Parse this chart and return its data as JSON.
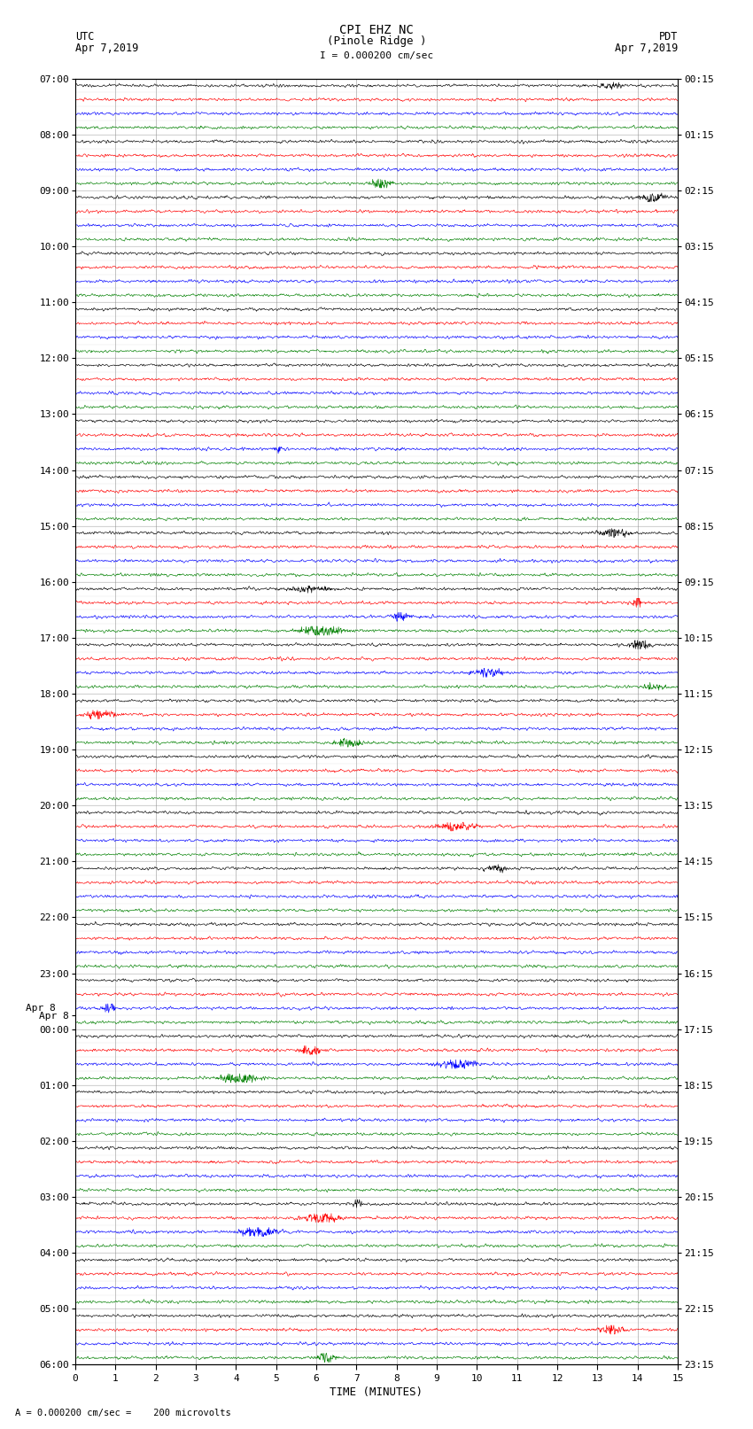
{
  "title_line1": "CPI EHZ NC",
  "title_line2": "(Pinole Ridge )",
  "title_scale": "I = 0.000200 cm/sec",
  "label_utc": "UTC",
  "label_pdt": "PDT",
  "date_left": "Apr 7,2019",
  "date_right": "Apr 7,2019",
  "xlabel": "TIME (MINUTES)",
  "scale_label": "= 0.000200 cm/sec =    200 microvolts",
  "scale_marker": "A",
  "bg_color": "#ffffff",
  "grid_color": "#888888",
  "trace_colors": [
    "black",
    "red",
    "blue",
    "green"
  ],
  "minutes_per_row": 15,
  "left_hour_labels": [
    [
      "07:00",
      0
    ],
    [
      "08:00",
      4
    ],
    [
      "09:00",
      8
    ],
    [
      "10:00",
      12
    ],
    [
      "11:00",
      16
    ],
    [
      "12:00",
      20
    ],
    [
      "13:00",
      24
    ],
    [
      "14:00",
      28
    ],
    [
      "15:00",
      32
    ],
    [
      "16:00",
      36
    ],
    [
      "17:00",
      40
    ],
    [
      "18:00",
      44
    ],
    [
      "19:00",
      48
    ],
    [
      "20:00",
      52
    ],
    [
      "21:00",
      56
    ],
    [
      "22:00",
      60
    ],
    [
      "23:00",
      64
    ],
    [
      "Apr 8",
      67
    ],
    [
      "00:00",
      68
    ],
    [
      "01:00",
      72
    ],
    [
      "02:00",
      76
    ],
    [
      "03:00",
      80
    ],
    [
      "04:00",
      84
    ],
    [
      "05:00",
      88
    ],
    [
      "06:00",
      92
    ]
  ],
  "right_hour_labels": [
    [
      "00:15",
      0
    ],
    [
      "01:15",
      4
    ],
    [
      "02:15",
      8
    ],
    [
      "03:15",
      12
    ],
    [
      "04:15",
      16
    ],
    [
      "05:15",
      20
    ],
    [
      "06:15",
      24
    ],
    [
      "07:15",
      28
    ],
    [
      "08:15",
      32
    ],
    [
      "09:15",
      36
    ],
    [
      "10:15",
      40
    ],
    [
      "11:15",
      44
    ],
    [
      "12:15",
      48
    ],
    [
      "13:15",
      52
    ],
    [
      "14:15",
      56
    ],
    [
      "15:15",
      60
    ],
    [
      "16:15",
      64
    ],
    [
      "17:15",
      68
    ],
    [
      "18:15",
      72
    ],
    [
      "19:15",
      76
    ],
    [
      "20:15",
      80
    ],
    [
      "21:15",
      84
    ],
    [
      "22:15",
      88
    ],
    [
      "23:15",
      92
    ]
  ],
  "num_trace_lines": 96,
  "noise_base": 0.08,
  "signal_scale": 0.32
}
